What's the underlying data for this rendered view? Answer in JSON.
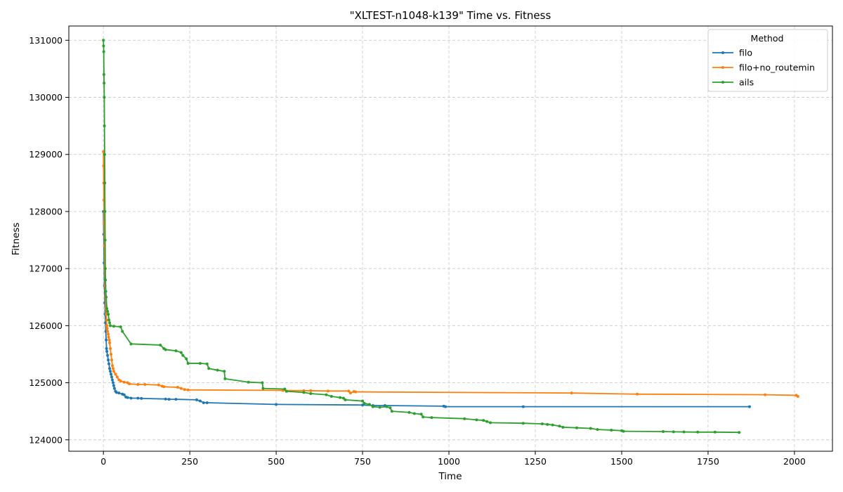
{
  "chart_data": {
    "type": "line",
    "title": "\"XLTEST-n1048-k139\" Time vs. Fitness",
    "xlabel": "Time",
    "ylabel": "Fitness",
    "xlim": [
      -100,
      2110
    ],
    "ylim": [
      123800,
      131250
    ],
    "xticks": [
      0,
      250,
      500,
      750,
      1000,
      1250,
      1500,
      1750,
      2000
    ],
    "yticks": [
      124000,
      125000,
      126000,
      127000,
      128000,
      129000,
      130000,
      131000
    ],
    "grid": true,
    "legend": {
      "title": "Method",
      "placement": "top-right"
    },
    "series": [
      {
        "name": "filo",
        "color": "#1f77b4",
        "points": [
          [
            0,
            128000
          ],
          [
            1,
            127600
          ],
          [
            2,
            127100
          ],
          [
            3,
            126700
          ],
          [
            4,
            126400
          ],
          [
            5,
            126200
          ],
          [
            6,
            126050
          ],
          [
            7,
            125900
          ],
          [
            8,
            125750
          ],
          [
            9,
            125600
          ],
          [
            10,
            125550
          ],
          [
            12,
            125480
          ],
          [
            14,
            125400
          ],
          [
            16,
            125330
          ],
          [
            18,
            125250
          ],
          [
            20,
            125200
          ],
          [
            22,
            125150
          ],
          [
            24,
            125100
          ],
          [
            26,
            125050
          ],
          [
            28,
            125000
          ],
          [
            30,
            124950
          ],
          [
            32,
            124900
          ],
          [
            35,
            124850
          ],
          [
            38,
            124830
          ],
          [
            45,
            124820
          ],
          [
            55,
            124800
          ],
          [
            60,
            124790
          ],
          [
            65,
            124750
          ],
          [
            70,
            124740
          ],
          [
            80,
            124730
          ],
          [
            100,
            124730
          ],
          [
            110,
            124725
          ],
          [
            180,
            124715
          ],
          [
            190,
            124710
          ],
          [
            210,
            124710
          ],
          [
            270,
            124700
          ],
          [
            280,
            124680
          ],
          [
            290,
            124650
          ],
          [
            300,
            124650
          ],
          [
            500,
            124620
          ],
          [
            750,
            124610
          ],
          [
            780,
            124600
          ],
          [
            815,
            124600
          ],
          [
            985,
            124590
          ],
          [
            990,
            124580
          ],
          [
            1215,
            124580
          ],
          [
            1870,
            124580
          ]
        ]
      },
      {
        "name": "filo+no_routemin",
        "color": "#ff7f0e",
        "points": [
          [
            0,
            129050
          ],
          [
            0.5,
            128800
          ],
          [
            1,
            128500
          ],
          [
            1.5,
            128200
          ],
          [
            2,
            127800
          ],
          [
            3,
            127400
          ],
          [
            4,
            127000
          ],
          [
            5,
            126700
          ],
          [
            6,
            126500
          ],
          [
            7,
            126300
          ],
          [
            8,
            126200
          ],
          [
            9,
            126100
          ],
          [
            10,
            126000
          ],
          [
            11,
            125950
          ],
          [
            12,
            125900
          ],
          [
            14,
            125850
          ],
          [
            15,
            125800
          ],
          [
            17,
            125750
          ],
          [
            18,
            125700
          ],
          [
            20,
            125600
          ],
          [
            22,
            125500
          ],
          [
            24,
            125400
          ],
          [
            26,
            125300
          ],
          [
            28,
            125250
          ],
          [
            30,
            125200
          ],
          [
            35,
            125150
          ],
          [
            40,
            125100
          ],
          [
            45,
            125050
          ],
          [
            50,
            125030
          ],
          [
            60,
            125010
          ],
          [
            70,
            125000
          ],
          [
            75,
            124980
          ],
          [
            100,
            124970
          ],
          [
            120,
            124970
          ],
          [
            160,
            124960
          ],
          [
            170,
            124940
          ],
          [
            175,
            124930
          ],
          [
            215,
            124920
          ],
          [
            225,
            124900
          ],
          [
            235,
            124880
          ],
          [
            245,
            124875
          ],
          [
            520,
            124865
          ],
          [
            580,
            124860
          ],
          [
            600,
            124860
          ],
          [
            650,
            124855
          ],
          [
            710,
            124855
          ],
          [
            715,
            124820
          ],
          [
            725,
            124845
          ],
          [
            730,
            124840
          ],
          [
            1355,
            124820
          ],
          [
            1545,
            124800
          ],
          [
            1915,
            124790
          ],
          [
            2005,
            124780
          ],
          [
            2010,
            124760
          ]
        ]
      },
      {
        "name": "ails",
        "color": "#2ca02c",
        "points": [
          [
            0,
            131000
          ],
          [
            0.5,
            130900
          ],
          [
            1,
            130800
          ],
          [
            1.5,
            130400
          ],
          [
            2,
            130250
          ],
          [
            2.5,
            130000
          ],
          [
            3,
            129500
          ],
          [
            3.5,
            129000
          ],
          [
            4,
            128500
          ],
          [
            4.5,
            128000
          ],
          [
            5,
            127500
          ],
          [
            5.5,
            127000
          ],
          [
            6,
            126800
          ],
          [
            7,
            126600
          ],
          [
            8,
            126500
          ],
          [
            10,
            126300
          ],
          [
            12,
            126250
          ],
          [
            14,
            126200
          ],
          [
            16,
            126100
          ],
          [
            18,
            126050
          ],
          [
            20,
            126000
          ],
          [
            30,
            125990
          ],
          [
            50,
            125980
          ],
          [
            55,
            125900
          ],
          [
            80,
            125680
          ],
          [
            165,
            125660
          ],
          [
            175,
            125600
          ],
          [
            180,
            125580
          ],
          [
            210,
            125560
          ],
          [
            225,
            125530
          ],
          [
            230,
            125480
          ],
          [
            240,
            125420
          ],
          [
            245,
            125340
          ],
          [
            280,
            125340
          ],
          [
            300,
            125330
          ],
          [
            305,
            125250
          ],
          [
            330,
            125220
          ],
          [
            350,
            125200
          ],
          [
            352,
            125070
          ],
          [
            420,
            125010
          ],
          [
            460,
            125000
          ],
          [
            462,
            124900
          ],
          [
            525,
            124890
          ],
          [
            530,
            124850
          ],
          [
            580,
            124830
          ],
          [
            600,
            124810
          ],
          [
            645,
            124790
          ],
          [
            660,
            124760
          ],
          [
            685,
            124740
          ],
          [
            695,
            124730
          ],
          [
            700,
            124700
          ],
          [
            750,
            124680
          ],
          [
            755,
            124640
          ],
          [
            770,
            124620
          ],
          [
            780,
            124580
          ],
          [
            800,
            124570
          ],
          [
            820,
            124580
          ],
          [
            830,
            124560
          ],
          [
            835,
            124500
          ],
          [
            885,
            124480
          ],
          [
            900,
            124460
          ],
          [
            920,
            124450
          ],
          [
            925,
            124400
          ],
          [
            950,
            124390
          ],
          [
            1045,
            124370
          ],
          [
            1080,
            124350
          ],
          [
            1100,
            124340
          ],
          [
            1110,
            124320
          ],
          [
            1120,
            124300
          ],
          [
            1215,
            124290
          ],
          [
            1270,
            124280
          ],
          [
            1285,
            124270
          ],
          [
            1300,
            124260
          ],
          [
            1320,
            124240
          ],
          [
            1330,
            124220
          ],
          [
            1370,
            124210
          ],
          [
            1410,
            124200
          ],
          [
            1430,
            124180
          ],
          [
            1470,
            124170
          ],
          [
            1500,
            124160
          ],
          [
            1505,
            124150
          ],
          [
            1620,
            124145
          ],
          [
            1650,
            124140
          ],
          [
            1680,
            124138
          ],
          [
            1720,
            124135
          ],
          [
            1770,
            124135
          ],
          [
            1840,
            124130
          ]
        ]
      }
    ]
  }
}
